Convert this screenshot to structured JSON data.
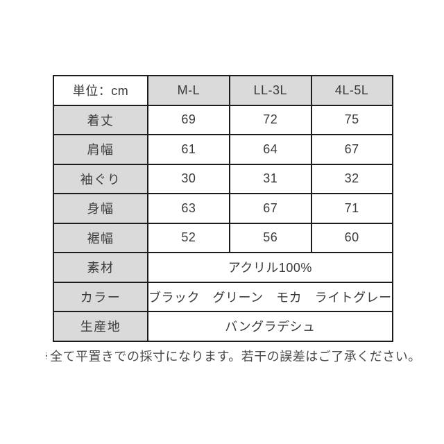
{
  "table": {
    "unit_label": "単位：cm",
    "size_headers": [
      "M-L",
      "LL-3L",
      "4L-5L"
    ],
    "measurement_rows": [
      {
        "label": "着丈",
        "values": [
          "69",
          "72",
          "75"
        ]
      },
      {
        "label": "肩幅",
        "values": [
          "61",
          "64",
          "67"
        ]
      },
      {
        "label": "袖ぐり",
        "values": [
          "30",
          "31",
          "32"
        ]
      },
      {
        "label": "身幅",
        "values": [
          "63",
          "67",
          "71"
        ]
      },
      {
        "label": "裾幅",
        "values": [
          "52",
          "56",
          "60"
        ]
      }
    ],
    "info_rows": [
      {
        "label": "素材",
        "value": "アクリル100%"
      },
      {
        "label": "カラー",
        "value": "ブラック　グリーン　モカ　ライトグレー"
      },
      {
        "label": "生産地",
        "value": "バングラデシュ"
      }
    ]
  },
  "note": {
    "mark": "※",
    "text": "全て平置きでの採寸になります。若干の誤差はご了承ください。"
  },
  "colors": {
    "header_fill": "#dadada",
    "border": "#1c1c1c",
    "table_text": "#3a3a3a",
    "note_text": "#4a4a4a",
    "background": "#ffffff"
  }
}
